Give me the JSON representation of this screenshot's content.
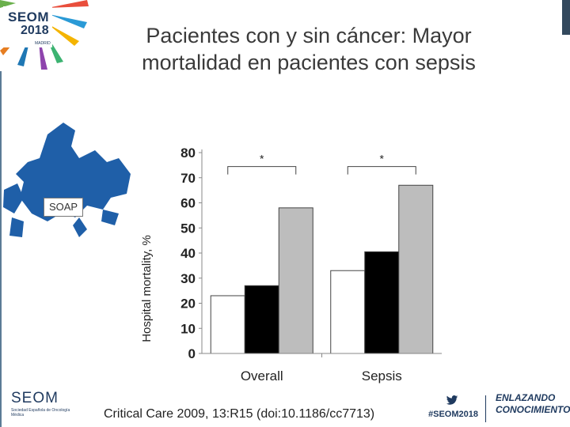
{
  "header": {
    "logo_word": "SEOM",
    "logo_year": "2018",
    "logo_city": "MADRID",
    "title_line1": "Pacientes con y sin cáncer: Mayor",
    "title_line2": "mortalidad en pacientes con sepsis"
  },
  "map_label": "SOAP",
  "chart_data": {
    "type": "bar",
    "categories": [
      "Overall",
      "Sepsis"
    ],
    "series": [
      {
        "values": [
          23,
          33
        ],
        "color": "#ffffff"
      },
      {
        "values": [
          27,
          40.5
        ],
        "color": "#000000"
      },
      {
        "values": [
          58,
          67
        ],
        "color": "#bdbdbd"
      }
    ],
    "ylabel": "Hospital mortality, %",
    "ylim": [
      0,
      80
    ],
    "yticks": [
      "0",
      "10",
      "20",
      "30",
      "40",
      "50",
      "60",
      "70",
      "80"
    ],
    "annotations": [
      "*",
      "*"
    ]
  },
  "footer": {
    "seom_word": "SEOM",
    "seom_sub": "Sociedad Española de Oncología Médica",
    "citation": "Critical Care 2009, 13:R15 (doi:10.1186/cc7713)",
    "hashtag": "#SEOM2018",
    "slogan_line1": "ENLAZANDO",
    "slogan_line2": "CONOCIMIENTO"
  },
  "colors": {
    "brand_navy": "#1f3a5f",
    "title_gray": "#3a3a3a"
  },
  "icons": [
    "twitter-icon",
    "europe-map-icon",
    "seom-logo-icon"
  ]
}
